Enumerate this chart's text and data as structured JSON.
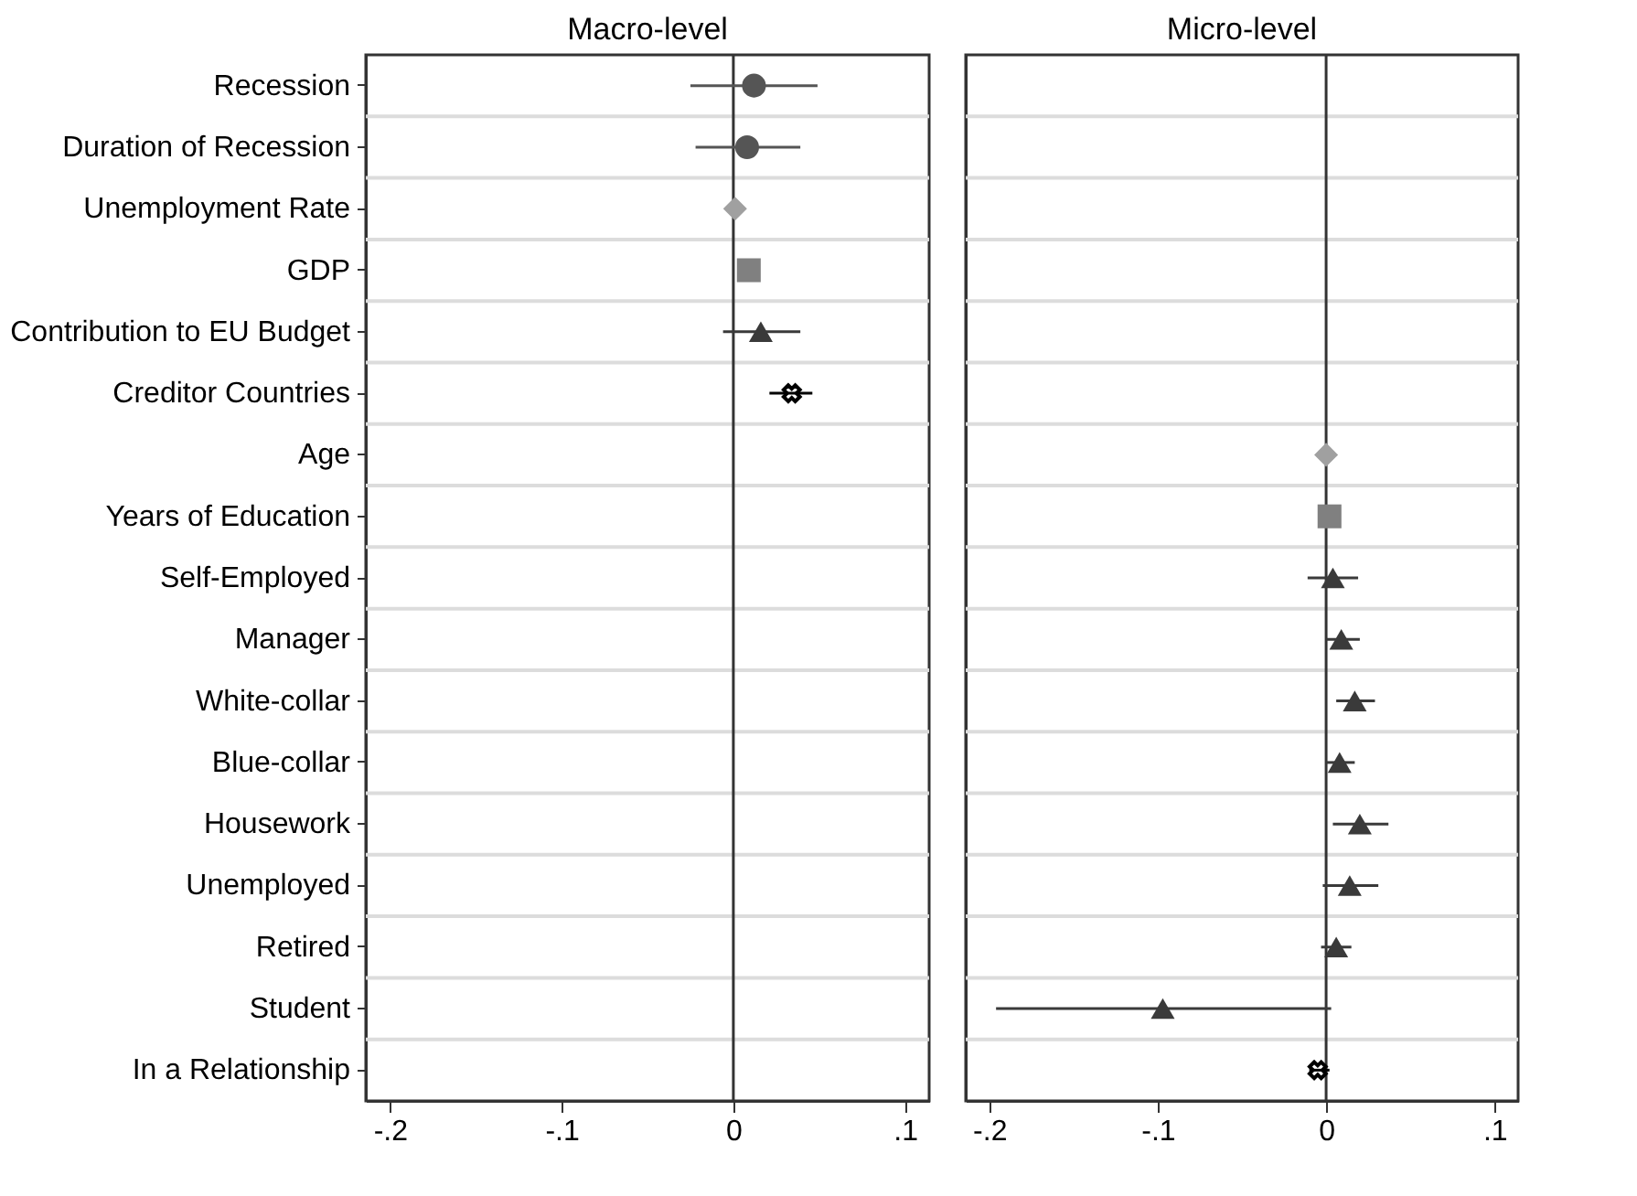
{
  "chart_data": [
    {
      "type": "scatter",
      "title": "Macro-level",
      "orientation": "horizontal",
      "categories": [
        "Recession",
        "Duration of Recession",
        "Unemployment Rate",
        "GDP",
        "Contribution to EU Budget",
        "Creditor Countries",
        "Age",
        "Years of Education",
        "Self-Employed",
        "Manager",
        "White-collar",
        "Blue-collar",
        "Housework",
        "Unemployed",
        "Retired",
        "Student",
        "In a Relationship"
      ],
      "series": [
        {
          "color": "#555555",
          "marker": "circle",
          "values": [
            0.012,
            0.008,
            null,
            null,
            null,
            null,
            null,
            null,
            null,
            null,
            null,
            null,
            null,
            null,
            null,
            null,
            null
          ],
          "errors": [
            [
              -0.025,
              0.049
            ],
            [
              -0.022,
              0.039
            ],
            null,
            null,
            null,
            null,
            null,
            null,
            null,
            null,
            null,
            null,
            null,
            null,
            null,
            null,
            null
          ]
        },
        {
          "color": "#a0a0a0",
          "marker": "diamond",
          "values": [
            null,
            null,
            0.001,
            null,
            null,
            null,
            null,
            null,
            null,
            null,
            null,
            null,
            null,
            null,
            null,
            null,
            null
          ]
        },
        {
          "color": "#808080",
          "marker": "square",
          "values": [
            null,
            null,
            null,
            0.009,
            null,
            null,
            null,
            null,
            null,
            null,
            null,
            null,
            null,
            null,
            null,
            null,
            null
          ]
        },
        {
          "color": "#3a3a3a",
          "marker": "triangle",
          "values": [
            null,
            null,
            null,
            null,
            0.016,
            null,
            null,
            null,
            null,
            null,
            null,
            null,
            null,
            null,
            null,
            null,
            null
          ],
          "errors": [
            null,
            null,
            null,
            null,
            [
              -0.006,
              0.039
            ],
            null,
            null,
            null,
            null,
            null,
            null,
            null,
            null,
            null,
            null,
            null,
            null
          ]
        },
        {
          "color": "#000000",
          "marker": "cross",
          "values": [
            null,
            null,
            null,
            null,
            null,
            0.034,
            null,
            null,
            null,
            null,
            null,
            null,
            null,
            null,
            null,
            null,
            null
          ],
          "errors": [
            null,
            null,
            null,
            null,
            null,
            [
              0.021,
              0.046
            ],
            null,
            null,
            null,
            null,
            null,
            null,
            null,
            null,
            null,
            null,
            null
          ]
        }
      ],
      "xlim": [
        -0.214,
        0.114
      ],
      "xticks": [
        {
          "value": -0.2,
          "label": "-.2"
        },
        {
          "value": -0.1,
          "label": "-.1"
        },
        {
          "value": 0,
          "label": "0"
        },
        {
          "value": 0.1,
          "label": ".1"
        }
      ],
      "ref_lines": [
        {
          "axis": "x",
          "value": 0,
          "color": "#333333"
        }
      ],
      "grid": "y"
    },
    {
      "type": "scatter",
      "title": "Micro-level",
      "orientation": "horizontal",
      "categories": [
        null,
        null,
        null,
        null,
        null,
        null,
        null,
        null,
        null,
        null,
        null,
        null,
        null,
        null,
        null,
        null,
        null
      ],
      "series": [
        {
          "color": "#a0a0a0",
          "marker": "diamond",
          "values": [
            null,
            null,
            null,
            null,
            null,
            null,
            0,
            null,
            null,
            null,
            null,
            null,
            null,
            null,
            null,
            null,
            null
          ]
        },
        {
          "color": "#808080",
          "marker": "square",
          "values": [
            null,
            null,
            null,
            null,
            null,
            null,
            null,
            0.002,
            null,
            null,
            null,
            null,
            null,
            null,
            null,
            null,
            null
          ]
        },
        {
          "color": "#3a3a3a",
          "marker": "triangle",
          "values": [
            null,
            null,
            null,
            null,
            null,
            null,
            null,
            null,
            0.004,
            0.009,
            0.017,
            0.008,
            0.02,
            0.014,
            0.006,
            -0.097,
            null
          ],
          "errors": [
            null,
            null,
            null,
            null,
            null,
            null,
            null,
            null,
            [
              -0.011,
              0.019
            ],
            [
              0,
              0.02
            ],
            [
              0.006,
              0.029
            ],
            [
              0,
              0.017
            ],
            [
              0.004,
              0.037
            ],
            [
              -0.002,
              0.031
            ],
            [
              -0.003,
              0.015
            ],
            [
              -0.196,
              0.003
            ],
            null
          ]
        },
        {
          "color": "#000000",
          "marker": "cross",
          "values": [
            null,
            null,
            null,
            null,
            null,
            null,
            null,
            null,
            null,
            null,
            null,
            null,
            null,
            null,
            null,
            null,
            -0.005
          ],
          "errors": [
            null,
            null,
            null,
            null,
            null,
            null,
            null,
            null,
            null,
            null,
            null,
            null,
            null,
            null,
            null,
            null,
            [
              -0.01,
              0.002
            ]
          ]
        }
      ],
      "xlim": [
        -0.214,
        0.114
      ],
      "xticks": [
        {
          "value": -0.2,
          "label": "-.2"
        },
        {
          "value": -0.1,
          "label": "-.1"
        },
        {
          "value": 0,
          "label": "0"
        },
        {
          "value": 0.1,
          "label": ".1"
        }
      ],
      "ref_lines": [
        {
          "axis": "x",
          "value": 0,
          "color": "#333333"
        }
      ],
      "grid": "y",
      "tick_labels": "x"
    }
  ]
}
